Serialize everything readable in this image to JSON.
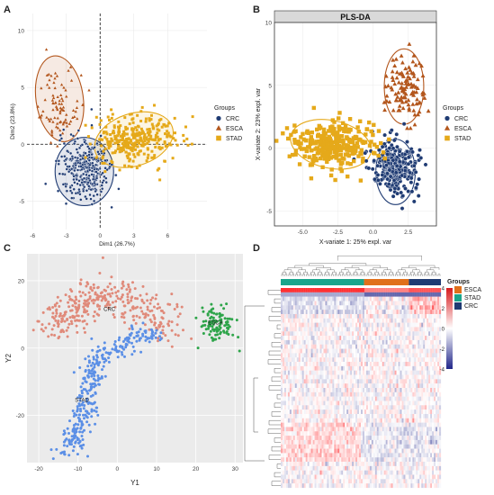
{
  "figure": {
    "panels": {
      "a": "A",
      "b": "B",
      "c": "C",
      "d": "D"
    },
    "colors": {
      "CRC": "#1f3b73",
      "ESCA": "#b3561c",
      "STAD": "#e5a91a",
      "tsne_CRC": "#e08a7a",
      "tsne_STAD": "#5b8fe6",
      "tsne_ESCA": "#2ea54a",
      "heat_high": "#d7191c",
      "heat_low": "#21268a",
      "heat_mid": "#ffffff",
      "grp_ESCA": "#e0701b",
      "grp_STAD": "#1aa58c",
      "grp_CRC": "#1f3b73"
    }
  },
  "chart_data": [
    {
      "panel": "A",
      "type": "scatter",
      "title": "",
      "xlabel": "Dim1 (26.7%)",
      "ylabel": "Dim2 (23.8%)",
      "xlim": [
        -6.5,
        9.5
      ],
      "ylim": [
        -7.5,
        11.5
      ],
      "x_ticks": [
        -6,
        -3,
        0,
        3,
        6
      ],
      "y_ticks": [
        -5,
        0,
        5,
        10
      ],
      "legend": {
        "title": "Groups",
        "position": "right",
        "entries": [
          "CRC",
          "ESCA",
          "STAD"
        ]
      },
      "series": [
        {
          "name": "CRC",
          "center": [
            -1.3,
            -2.2
          ],
          "spread": [
            1.1,
            1.4
          ],
          "n": 320
        },
        {
          "name": "ESCA",
          "center": [
            -3.7,
            3.6
          ],
          "spread": [
            0.9,
            1.7
          ],
          "n": 90
        },
        {
          "name": "STAD",
          "center": [
            3.1,
            0.4
          ],
          "spread": [
            1.8,
            1.1
          ],
          "n": 330
        }
      ],
      "ellipses": [
        {
          "name": "CRC",
          "center": [
            -1.4,
            -2.4
          ],
          "radii": [
            2.6,
            3.0
          ],
          "angle": 0
        },
        {
          "name": "ESCA",
          "center": [
            -3.6,
            4.0
          ],
          "radii": [
            2.1,
            3.8
          ],
          "angle": 8
        },
        {
          "name": "STAD",
          "center": [
            3.0,
            0.4
          ],
          "radii": [
            3.6,
            2.3
          ],
          "angle": 18
        }
      ]
    },
    {
      "panel": "B",
      "type": "scatter",
      "title": "PLS-DA",
      "xlabel": "X-variate 1: 25% expl. var",
      "ylabel": "X-variate 2: 23% expl. var",
      "xlim": [
        -7,
        4.5
      ],
      "ylim": [
        -6.2,
        10
      ],
      "x_ticks": [
        -5.0,
        -2.5,
        0.0,
        2.5
      ],
      "x_tick_labels": [
        "-5.0",
        "-2.5",
        "0.0",
        "2.5"
      ],
      "y_ticks": [
        -5,
        0,
        5,
        10
      ],
      "legend": {
        "title": "Groups",
        "position": "right",
        "entries": [
          "CRC",
          "ESCA",
          "STAD"
        ]
      },
      "series": [
        {
          "name": "CRC",
          "center": [
            1.6,
            -1.6
          ],
          "spread": [
            0.8,
            1.0
          ],
          "n": 300
        },
        {
          "name": "ESCA",
          "center": [
            2.3,
            4.8
          ],
          "spread": [
            0.7,
            1.3
          ],
          "n": 110
        },
        {
          "name": "STAD",
          "center": [
            -2.8,
            0.3
          ],
          "spread": [
            1.5,
            0.9
          ],
          "n": 300
        }
      ],
      "ellipses": [
        {
          "name": "CRC",
          "center": [
            1.6,
            -1.9
          ],
          "radii": [
            1.4,
            2.6
          ],
          "angle": 0
        },
        {
          "name": "ESCA",
          "center": [
            2.2,
            4.9
          ],
          "radii": [
            1.4,
            3.0
          ],
          "angle": 0
        },
        {
          "name": "STAD",
          "center": [
            -3.0,
            0.3
          ],
          "radii": [
            2.9,
            1.9
          ],
          "angle": -12
        }
      ]
    },
    {
      "panel": "C",
      "type": "scatter",
      "title": "",
      "xlabel": "Y1",
      "ylabel": "Y2",
      "xlim": [
        -23,
        32
      ],
      "ylim": [
        -34,
        28
      ],
      "x_ticks": [
        -20,
        -10,
        0,
        10,
        20,
        30
      ],
      "y_ticks": [
        -20,
        0,
        20
      ],
      "annotations": [
        {
          "text": "CRC",
          "x": -2,
          "y": 11
        },
        {
          "text": "STAD",
          "x": -9,
          "y": -16
        },
        {
          "text": "ESCA",
          "x": 25,
          "y": 7
        }
      ],
      "series": [
        {
          "name": "CRC",
          "n": 340
        },
        {
          "name": "STAD",
          "n": 330
        },
        {
          "name": "ESCA",
          "n": 110
        }
      ]
    },
    {
      "panel": "D",
      "type": "heatmap",
      "title": "",
      "rows": 46,
      "columns": 180,
      "annotation_row": {
        "name": "Groups",
        "segments": [
          {
            "group": "STAD",
            "fraction": 0.52
          },
          {
            "group": "ESCA",
            "fraction": 0.28
          },
          {
            "group": "CRC",
            "fraction": 0.2
          }
        ]
      },
      "legend": {
        "title": "Groups",
        "entries": [
          "ESCA",
          "STAD",
          "CRC"
        ]
      },
      "color_scale": {
        "ticks": [
          4,
          2,
          0,
          -2,
          -4
        ],
        "tick_labels": [
          "4",
          "2",
          "0",
          "-2",
          "-4"
        ]
      }
    }
  ]
}
